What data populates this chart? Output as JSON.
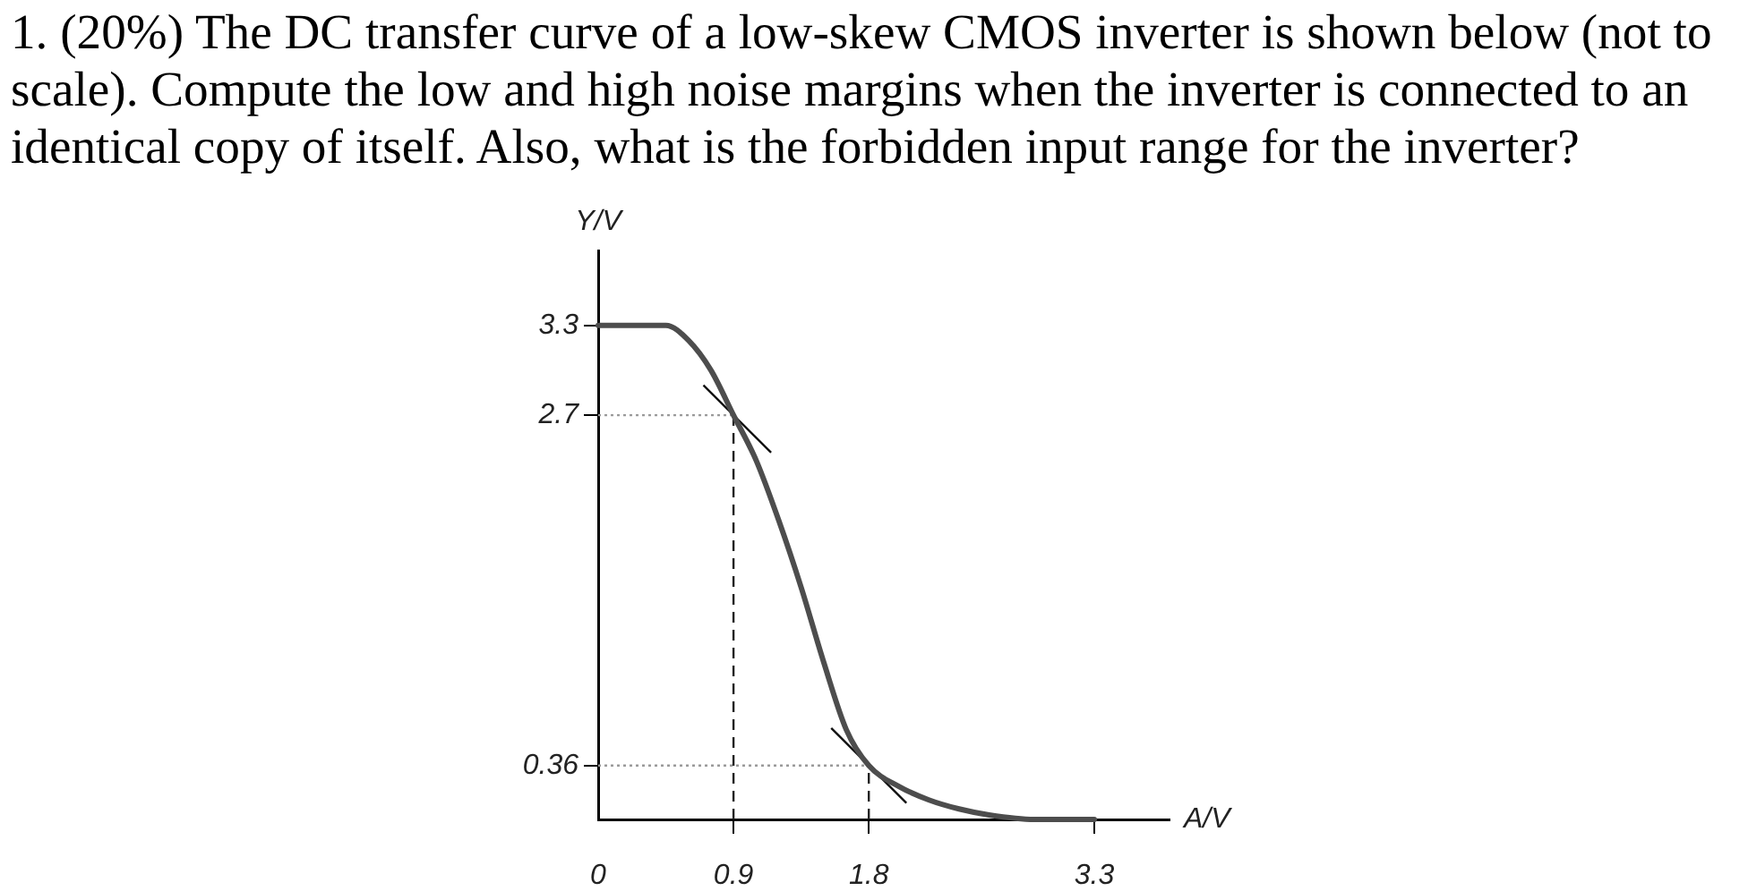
{
  "chart_data": {
    "type": "line",
    "title": "1. (20%) The DC transfer curve of a low-skew CMOS inverter is shown below (not to scale). Compute the low and high noise margins when the inverter is connected to an identical copy of itself. Also, what is the forbidden input range for the inverter?",
    "xlabel": "A/V",
    "ylabel": "Y/V",
    "xlim": [
      0,
      3.8
    ],
    "xticks": [
      0,
      0.9,
      1.8,
      3.3
    ],
    "ylim": [
      0,
      3.8
    ],
    "yticks": [
      0.36,
      2.7,
      3.3
    ],
    "grid": false,
    "legend": false,
    "marker": "none",
    "series": [
      {
        "color": "#4d4d4d",
        "line_style": "solid",
        "x": [
          0,
          0.45,
          0.6,
          0.75,
          0.9,
          1.05,
          1.2,
          1.35,
          1.5,
          1.65,
          1.8,
          2.0,
          2.2,
          2.4,
          2.6,
          2.9,
          3.3
        ],
        "values": [
          3.3,
          3.3,
          3.2,
          3.0,
          2.7,
          2.4,
          2.0,
          1.55,
          1.05,
          0.6,
          0.36,
          0.22,
          0.13,
          0.07,
          0.03,
          0,
          0
        ]
      },
      {
        "color": "#111111",
        "line_style": "solid",
        "x": [
          0.7,
          1.15
        ],
        "values": [
          2.9,
          2.45
        ]
      },
      {
        "color": "#111111",
        "line_style": "solid",
        "x": [
          1.55,
          2.05
        ],
        "values": [
          0.61,
          0.11
        ]
      },
      {
        "color": "#9a9a9a",
        "line_style": "dotted",
        "x": [
          0,
          0.9
        ],
        "values": [
          2.7,
          2.7
        ]
      },
      {
        "color": "#222222",
        "line_style": "dashed",
        "x": [
          0.9,
          0.9
        ],
        "values": [
          0,
          2.7
        ]
      },
      {
        "color": "#9a9a9a",
        "line_style": "dotted",
        "x": [
          0,
          1.8
        ],
        "values": [
          0.36,
          0.36
        ]
      },
      {
        "color": "#222222",
        "line_style": "dashed",
        "x": [
          1.8,
          1.8
        ],
        "values": [
          0,
          0.36
        ]
      }
    ]
  }
}
